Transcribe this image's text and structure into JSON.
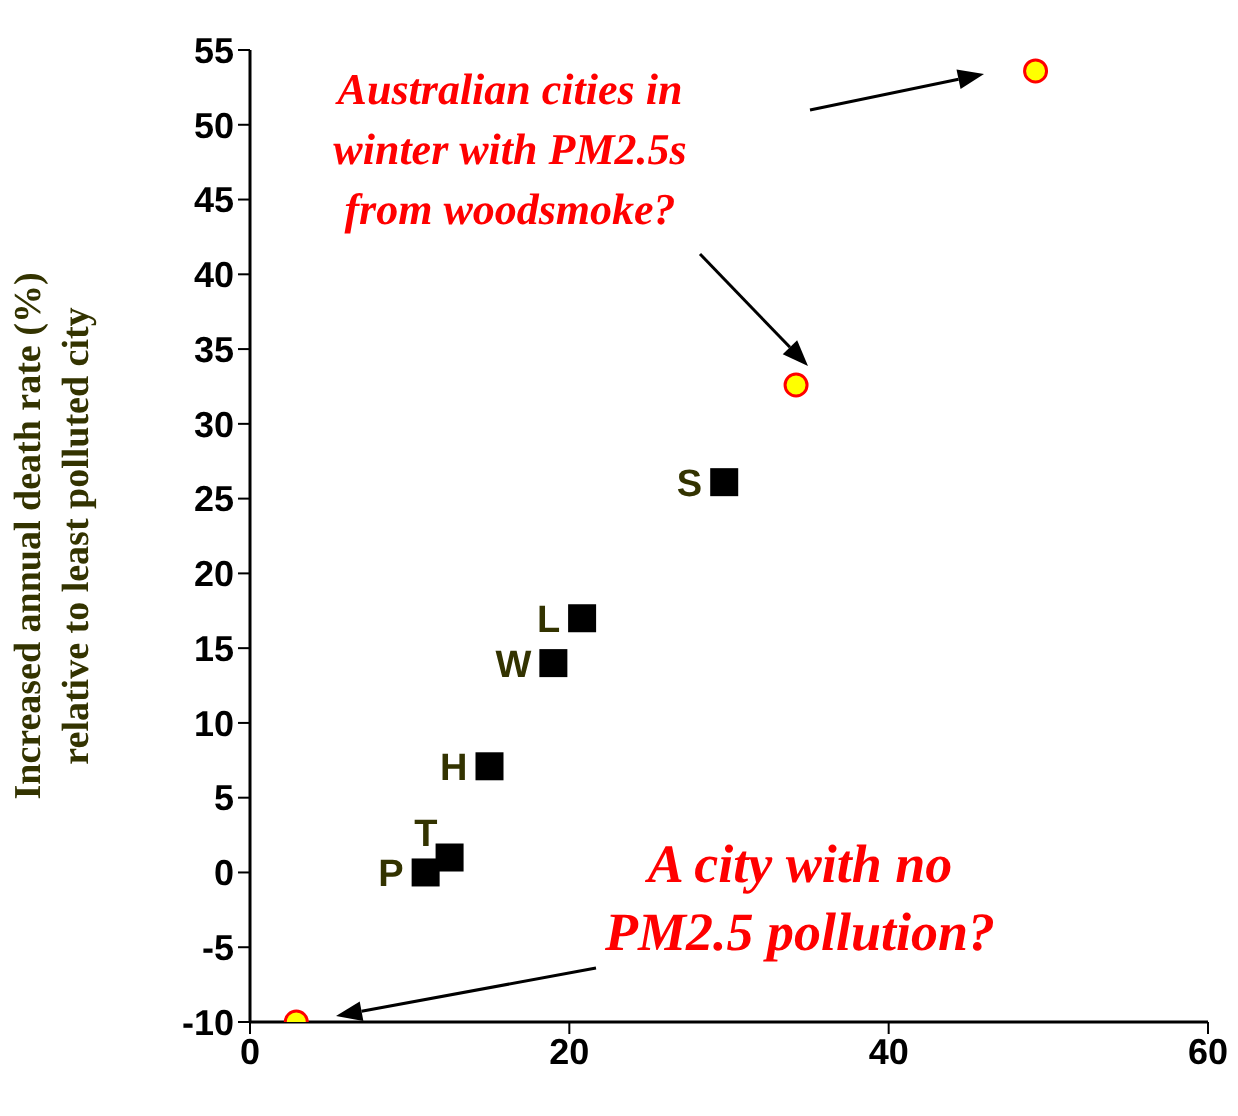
{
  "chart_data": {
    "type": "scatter",
    "ylabel": "Increased annual death rate (%)\nrelative to least polluted city",
    "series": [
      {
        "color": "#000000",
        "marker": "square",
        "x": [
          11,
          12.5,
          15,
          19,
          20.8,
          29.7
        ],
        "values": [
          0,
          1,
          7.1,
          14,
          17,
          26.1
        ]
      },
      {
        "color": "#ffff00",
        "marker": "circle",
        "x": [
          2.9,
          34.2,
          49.2
        ],
        "values": [
          -10,
          32.6,
          53.6
        ]
      }
    ],
    "xlim": [
      0,
      60
    ],
    "xticks": [
      0,
      20,
      40,
      60
    ],
    "ylim": [
      -10,
      55
    ],
    "yticks": [
      -10,
      -5,
      0,
      5,
      10,
      15,
      20,
      25,
      30,
      35,
      40,
      45,
      50,
      55
    ],
    "grid": false,
    "legend": false,
    "annotations": [
      {
        "text": "P",
        "x": 11,
        "y": 0
      },
      {
        "text": "T",
        "x": 12.5,
        "y": 1
      },
      {
        "text": "H",
        "x": 15,
        "y": 7.1
      },
      {
        "text": "W",
        "x": 19,
        "y": 14
      },
      {
        "text": "L",
        "x": 20.8,
        "y": 17
      },
      {
        "text": "S",
        "x": 29.7,
        "y": 26.1
      },
      "Australian cities in\nwinter with PM2.5s\nfrom woodsmoke?",
      "A city with no\nPM2.5 pollution?"
    ]
  }
}
